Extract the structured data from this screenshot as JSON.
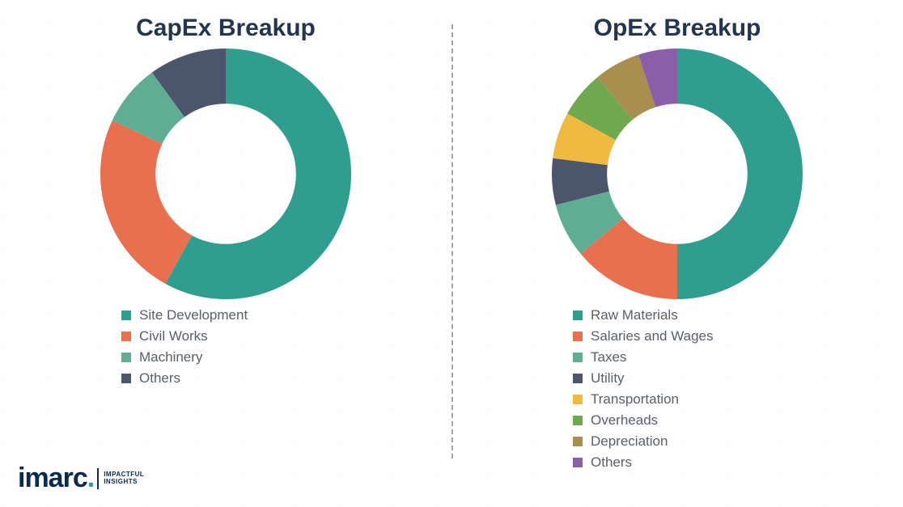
{
  "background_color": "#f4f6f7",
  "divider_color": "#9aa4ad",
  "legend_text_color": "#5a6068",
  "title_color": "#22374f",
  "logo": {
    "brand": "imarc",
    "tagline_line1": "IMPACTFUL",
    "tagline_line2": "INSIGHTS",
    "brand_color": "#0a2b4e",
    "dot_color": "#2f9e8f"
  },
  "capex": {
    "title": "CapEx Breakup",
    "type": "donut",
    "donut_inner_ratio": 0.6,
    "stroke_width": 44,
    "start_angle_deg": 0,
    "segments": [
      {
        "label": "Site Development",
        "value": 58,
        "color": "#2f9e8f"
      },
      {
        "label": "Civil Works",
        "value": 24,
        "color": "#e8704f"
      },
      {
        "label": "Machinery",
        "value": 8,
        "color": "#5fae94"
      },
      {
        "label": "Others",
        "value": 10,
        "color": "#4b556b"
      }
    ]
  },
  "opex": {
    "title": "OpEx Breakup",
    "type": "donut",
    "donut_inner_ratio": 0.6,
    "stroke_width": 44,
    "start_angle_deg": 0,
    "segments": [
      {
        "label": "Raw Materials",
        "value": 50,
        "color": "#2f9e8f"
      },
      {
        "label": "Salaries and Wages",
        "value": 14,
        "color": "#e8704f"
      },
      {
        "label": "Taxes",
        "value": 7,
        "color": "#5fae94"
      },
      {
        "label": "Utility",
        "value": 6,
        "color": "#4b556b"
      },
      {
        "label": "Transportation",
        "value": 6,
        "color": "#f0b93f"
      },
      {
        "label": "Overheads",
        "value": 6,
        "color": "#6fa84f"
      },
      {
        "label": "Depreciation",
        "value": 6,
        "color": "#a88e4f"
      },
      {
        "label": "Others",
        "value": 5,
        "color": "#8a5fa8"
      }
    ]
  }
}
